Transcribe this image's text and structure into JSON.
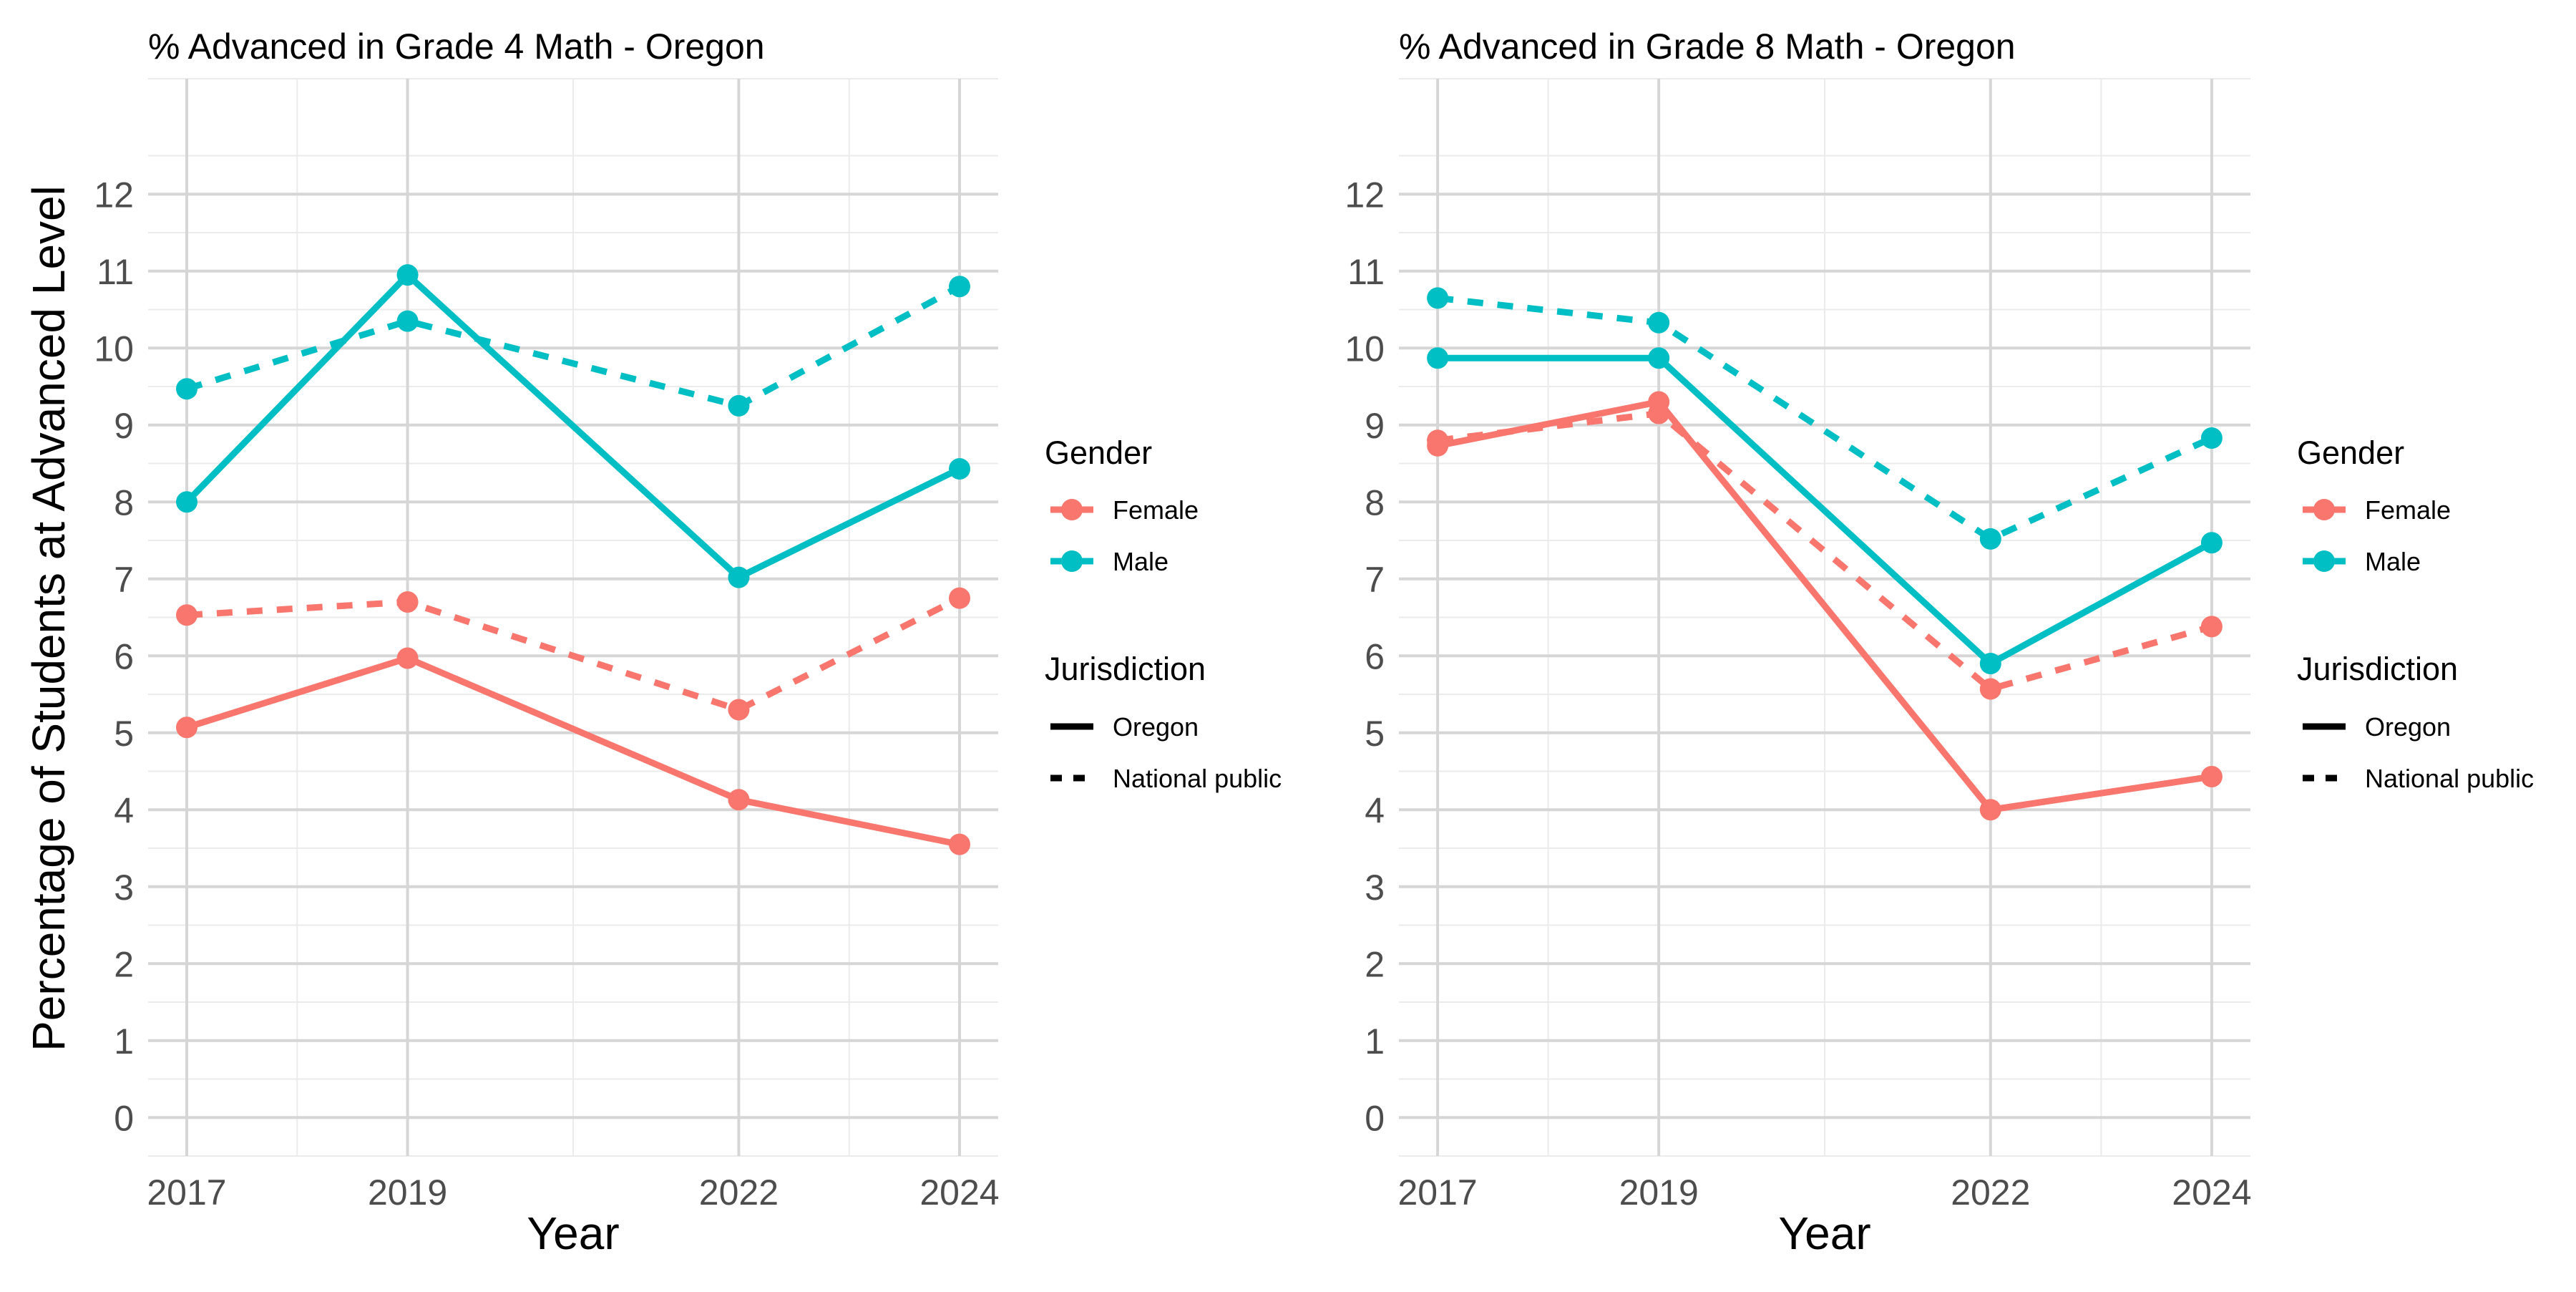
{
  "shared": {
    "ylabel": "Percentage of Students at Advanced Level",
    "xlabel": "Year",
    "legend": {
      "gender_title": "Gender",
      "gender_items": [
        {
          "label": "Female",
          "color": "#F8766D"
        },
        {
          "label": "Male",
          "color": "#00BFC4"
        }
      ],
      "jurisdiction_title": "Jurisdiction",
      "jurisdiction_items": [
        {
          "label": "Oregon",
          "linestyle": "solid"
        },
        {
          "label": "National public",
          "linestyle": "dashed"
        }
      ]
    }
  },
  "chart_data": [
    {
      "type": "line",
      "title": "% Advanced in Grade 4 Math - Oregon",
      "xlabel": "Year",
      "ylabel": "Percentage of Students at Advanced Level",
      "x": [
        2017,
        2019,
        2022,
        2024
      ],
      "xlim": [
        2016.65,
        2024.35
      ],
      "ylim": [
        -0.5,
        13.5
      ],
      "yticks": [
        0,
        1,
        2,
        3,
        4,
        5,
        6,
        7,
        8,
        9,
        10,
        11,
        12
      ],
      "grid": true,
      "legend_position": "right",
      "series": [
        {
          "gender": "Female",
          "jurisdiction": "Oregon",
          "color": "#F8766D",
          "linestyle": "solid",
          "values": [
            5.07,
            5.97,
            4.13,
            3.55
          ]
        },
        {
          "gender": "Female",
          "jurisdiction": "National public",
          "color": "#F8766D",
          "linestyle": "dashed",
          "values": [
            6.53,
            6.7,
            5.3,
            6.75
          ]
        },
        {
          "gender": "Male",
          "jurisdiction": "Oregon",
          "color": "#00BFC4",
          "linestyle": "solid",
          "values": [
            8.0,
            10.95,
            7.02,
            8.43
          ]
        },
        {
          "gender": "Male",
          "jurisdiction": "National public",
          "color": "#00BFC4",
          "linestyle": "dashed",
          "values": [
            9.47,
            10.35,
            9.25,
            10.8
          ]
        }
      ]
    },
    {
      "type": "line",
      "title": "% Advanced in Grade 8 Math - Oregon",
      "xlabel": "Year",
      "ylabel": "",
      "x": [
        2017,
        2019,
        2022,
        2024
      ],
      "xlim": [
        2016.65,
        2024.35
      ],
      "ylim": [
        -0.5,
        13.5
      ],
      "yticks": [
        0,
        1,
        2,
        3,
        4,
        5,
        6,
        7,
        8,
        9,
        10,
        11,
        12
      ],
      "grid": true,
      "legend_position": "right",
      "series": [
        {
          "gender": "Female",
          "jurisdiction": "Oregon",
          "color": "#F8766D",
          "linestyle": "solid",
          "values": [
            8.73,
            9.3,
            4.0,
            4.43
          ]
        },
        {
          "gender": "Female",
          "jurisdiction": "National public",
          "color": "#F8766D",
          "linestyle": "dashed",
          "values": [
            8.8,
            9.15,
            5.57,
            6.38
          ]
        },
        {
          "gender": "Male",
          "jurisdiction": "Oregon",
          "color": "#00BFC4",
          "linestyle": "solid",
          "values": [
            9.87,
            9.87,
            5.9,
            7.47
          ]
        },
        {
          "gender": "Male",
          "jurisdiction": "National public",
          "color": "#00BFC4",
          "linestyle": "dashed",
          "values": [
            10.65,
            10.33,
            7.52,
            8.83
          ]
        }
      ]
    }
  ]
}
